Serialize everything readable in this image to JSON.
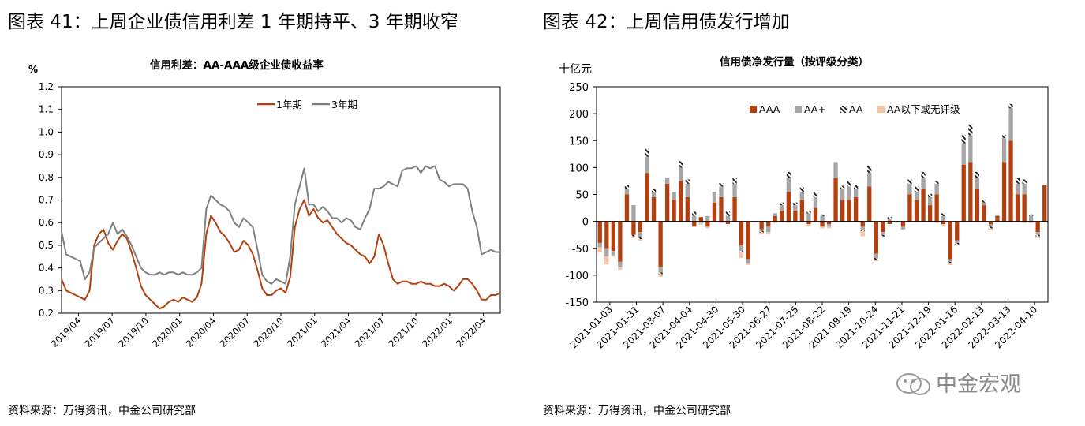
{
  "headings": {
    "left": "图表 41：上周企业债信用利差 1 年期持平、3 年期收窄",
    "right": "图表 42：上周信用债发行增加"
  },
  "source_left": "资料来源：万得资讯，中金公司研究部",
  "source_right": "资料来源：万得资讯，中金公司研究部",
  "watermark": "中金宏观",
  "chart_data": [
    {
      "type": "line",
      "title": "信用利差：AA-AAA级企业债收益率",
      "ylabel": "%",
      "ylim": [
        0.2,
        1.2
      ],
      "yticks": [
        "0.2",
        "0.3",
        "0.4",
        "0.5",
        "0.6",
        "0.7",
        "0.8",
        "0.9",
        "1.0",
        "1.1",
        "1.2"
      ],
      "xticks": [
        "2019/04",
        "2019/07",
        "2019/10",
        "2020/01",
        "2020/04",
        "2020/07",
        "2020/10",
        "2021/01",
        "2021/04",
        "2021/07",
        "2021/10",
        "2022/01",
        "2022/04"
      ],
      "legend_position": "top-right",
      "series": [
        {
          "name": "1年期",
          "color": "#b5400f",
          "values": [
            0.35,
            0.3,
            0.29,
            0.28,
            0.27,
            0.26,
            0.3,
            0.5,
            0.55,
            0.57,
            0.51,
            0.48,
            0.52,
            0.55,
            0.53,
            0.47,
            0.4,
            0.32,
            0.28,
            0.26,
            0.24,
            0.22,
            0.23,
            0.25,
            0.26,
            0.25,
            0.27,
            0.26,
            0.25,
            0.27,
            0.33,
            0.55,
            0.63,
            0.6,
            0.56,
            0.54,
            0.51,
            0.47,
            0.48,
            0.52,
            0.5,
            0.46,
            0.39,
            0.31,
            0.28,
            0.28,
            0.3,
            0.31,
            0.29,
            0.36,
            0.58,
            0.66,
            0.7,
            0.63,
            0.66,
            0.62,
            0.6,
            0.61,
            0.58,
            0.55,
            0.53,
            0.51,
            0.5,
            0.48,
            0.46,
            0.45,
            0.42,
            0.45,
            0.55,
            0.5,
            0.42,
            0.35,
            0.33,
            0.34,
            0.34,
            0.33,
            0.33,
            0.34,
            0.33,
            0.33,
            0.32,
            0.32,
            0.33,
            0.32,
            0.3,
            0.32,
            0.35,
            0.35,
            0.33,
            0.3,
            0.26,
            0.26,
            0.28,
            0.28,
            0.29
          ]
        },
        {
          "name": "3年期",
          "color": "#808080",
          "values": [
            0.56,
            0.46,
            0.45,
            0.44,
            0.43,
            0.35,
            0.38,
            0.49,
            0.51,
            0.53,
            0.55,
            0.6,
            0.55,
            0.57,
            0.54,
            0.5,
            0.45,
            0.4,
            0.38,
            0.37,
            0.37,
            0.38,
            0.37,
            0.38,
            0.38,
            0.37,
            0.38,
            0.37,
            0.37,
            0.38,
            0.4,
            0.66,
            0.72,
            0.7,
            0.68,
            0.67,
            0.65,
            0.6,
            0.58,
            0.62,
            0.6,
            0.58,
            0.48,
            0.37,
            0.34,
            0.33,
            0.35,
            0.34,
            0.33,
            0.45,
            0.68,
            0.76,
            0.84,
            0.68,
            0.68,
            0.65,
            0.67,
            0.65,
            0.62,
            0.62,
            0.6,
            0.62,
            0.61,
            0.58,
            0.57,
            0.62,
            0.66,
            0.75,
            0.75,
            0.76,
            0.78,
            0.77,
            0.76,
            0.83,
            0.84,
            0.84,
            0.85,
            0.82,
            0.85,
            0.84,
            0.85,
            0.79,
            0.78,
            0.76,
            0.77,
            0.77,
            0.77,
            0.75,
            0.65,
            0.58,
            0.46,
            0.47,
            0.48,
            0.47,
            0.47
          ]
        }
      ]
    },
    {
      "type": "bar",
      "stacked": true,
      "title": "信用债净发行量（按评级分类）",
      "ylabel": "十亿元",
      "ylim": [
        -150,
        250
      ],
      "yticks": [
        "-150",
        "-100",
        "-50",
        "0",
        "50",
        "100",
        "150",
        "200",
        "250"
      ],
      "xticks": [
        "2021-01-03",
        "2021-01-31",
        "2021-03-07",
        "2021-04-04",
        "2021-04-30",
        "2021-05-30",
        "2021-06-27",
        "2021-07-25",
        "2021-08-22",
        "2021-09-19",
        "2021-10-24",
        "2021-11-21",
        "2021-12-19",
        "2022-01-16",
        "2022-02-13",
        "2022-03-13",
        "2022-04-10"
      ],
      "legend_position": "top",
      "series": [
        {
          "name": "AAA",
          "color": "#b5400f",
          "values": [
            -40,
            -50,
            -55,
            -75,
            50,
            -25,
            -20,
            90,
            45,
            -85,
            70,
            40,
            75,
            45,
            -10,
            8,
            -10,
            35,
            45,
            -5,
            45,
            -45,
            -70,
            0,
            -15,
            -10,
            10,
            20,
            55,
            20,
            40,
            -5,
            25,
            -10,
            -5,
            80,
            40,
            40,
            45,
            -10,
            65,
            -60,
            -20,
            -5,
            0,
            -10,
            50,
            40,
            60,
            30,
            50,
            -5,
            -70,
            -35,
            105,
            110,
            60,
            30,
            -5,
            10,
            110,
            150,
            50,
            50,
            0,
            -20,
            68
          ]
        },
        {
          "name": "AA+",
          "color": "#a6a6a6",
          "values": [
            -8,
            -15,
            -8,
            -10,
            10,
            30,
            -10,
            30,
            10,
            -10,
            10,
            15,
            25,
            25,
            10,
            -3,
            10,
            20,
            20,
            10,
            25,
            -10,
            -8,
            0,
            -3,
            -10,
            5,
            10,
            25,
            10,
            15,
            15,
            20,
            10,
            -5,
            30,
            20,
            25,
            15,
            -5,
            25,
            -8,
            -5,
            5,
            0,
            -5,
            20,
            15,
            20,
            15,
            20,
            10,
            -5,
            -5,
            40,
            50,
            20,
            5,
            -5,
            3,
            45,
            60,
            20,
            20,
            10,
            -5,
            0
          ]
        },
        {
          "name": "AA",
          "color": "#222222",
          "hatched": true,
          "values": [
            0,
            0,
            0,
            0,
            8,
            -3,
            -3,
            15,
            5,
            -3,
            0,
            0,
            12,
            8,
            8,
            0,
            0,
            0,
            6,
            8,
            10,
            -3,
            0,
            0,
            -3,
            0,
            0,
            5,
            12,
            5,
            8,
            5,
            10,
            3,
            0,
            0,
            6,
            10,
            8,
            -3,
            12,
            -3,
            -3,
            3,
            0,
            0,
            8,
            10,
            12,
            6,
            5,
            5,
            -3,
            -3,
            15,
            20,
            12,
            5,
            -3,
            0,
            5,
            8,
            10,
            8,
            3,
            -3,
            0
          ]
        },
        {
          "name": "AA以下或无评级",
          "color": "#f7c4a4",
          "values": [
            -10,
            -15,
            -3,
            -5,
            0,
            -3,
            -3,
            0,
            0,
            -5,
            0,
            0,
            0,
            0,
            0,
            -3,
            -3,
            0,
            -3,
            0,
            0,
            -10,
            -3,
            0,
            -3,
            -3,
            -3,
            0,
            -3,
            0,
            0,
            -3,
            0,
            -3,
            -3,
            0,
            0,
            0,
            0,
            -10,
            0,
            -3,
            0,
            0,
            0,
            0,
            0,
            0,
            0,
            0,
            -3,
            -3,
            -3,
            0,
            0,
            0,
            0,
            0,
            -3,
            0,
            0,
            0,
            0,
            -3,
            -3,
            -3,
            0
          ]
        }
      ]
    }
  ]
}
